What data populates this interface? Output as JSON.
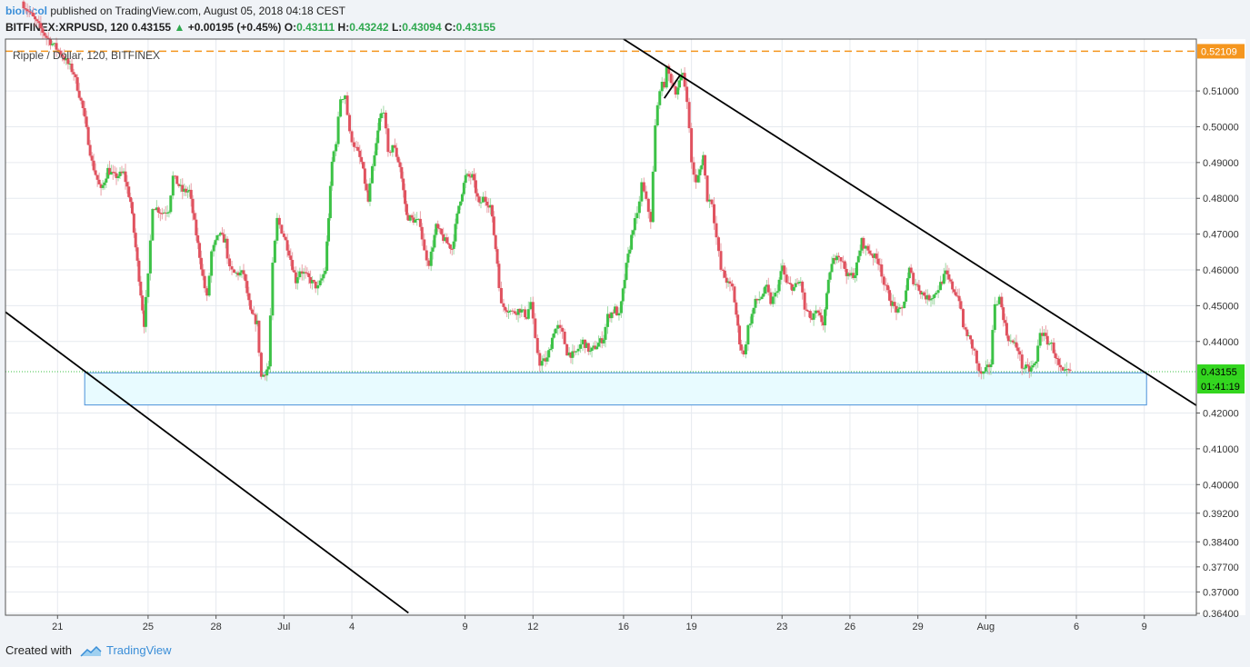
{
  "header": {
    "author": "bionicol",
    "published_text": "published on TradingView.com, August 05, 2018 04:18 CEST",
    "symbol": "BITFINEX:XRPUSD, 120",
    "last": "0.43155",
    "change_arrow": "▲",
    "change": "+0.00195 (+0.45%)",
    "open_label": "O:",
    "open": "0.43111",
    "high_label": "H:",
    "high": "0.43242",
    "low_label": "L:",
    "low": "0.43094",
    "close_label": "C:",
    "close": "0.43155"
  },
  "footer": {
    "created_with": "Created with",
    "brand": "TradingView",
    "logo_icon": "tradingview-cloud-icon"
  },
  "colors": {
    "up": "#3cc246",
    "down": "#e0525f",
    "grid": "#e6eaef",
    "trendline": "#000000",
    "resistance": "#f5961e",
    "box_fill": "#e8fbff",
    "box_stroke": "#4a90d9",
    "price_label": "#33d61f",
    "current_line": "#3cc246"
  },
  "chart_data": {
    "type": "candlestick",
    "title": "Ripple / Dollar, 120, BITFINEX",
    "ylim": [
      0.3635,
      0.5245
    ],
    "y_ticks": [
      0.51,
      0.5,
      0.49,
      0.48,
      0.47,
      0.46,
      0.45,
      0.44,
      0.42,
      0.41,
      0.4,
      0.392,
      0.384,
      0.377,
      0.37,
      0.364
    ],
    "y_tick_labels": [
      "0.51000",
      "0.50000",
      "0.49000",
      "0.48000",
      "0.47000",
      "0.46000",
      "0.45000",
      "0.44000",
      "0.42000",
      "0.41000",
      "0.40000",
      "0.39200",
      "0.38400",
      "0.37700",
      "0.37000",
      "0.36400"
    ],
    "x_ticks": [
      "21",
      "25",
      "28",
      "Jul",
      "4",
      "9",
      "12",
      "16",
      "19",
      "23",
      "26",
      "29",
      "Aug",
      "6",
      "9"
    ],
    "x_tick_days": [
      0,
      4,
      7,
      10,
      13,
      18,
      21,
      25,
      28,
      32,
      35,
      38,
      41,
      45,
      48
    ],
    "x_range_days": [
      -2.3,
      50.3
    ],
    "price_path": [
      [
        -1.5,
        0.535
      ],
      [
        -0.4,
        0.525
      ],
      [
        0.3,
        0.52
      ],
      [
        0.8,
        0.515
      ],
      [
        1.2,
        0.505
      ],
      [
        1.6,
        0.49
      ],
      [
        2.0,
        0.482
      ],
      [
        2.3,
        0.488
      ],
      [
        2.6,
        0.486
      ],
      [
        3.0,
        0.487
      ],
      [
        3.3,
        0.479
      ],
      [
        3.6,
        0.462
      ],
      [
        3.9,
        0.445
      ],
      [
        4.1,
        0.458
      ],
      [
        4.3,
        0.478
      ],
      [
        4.7,
        0.476
      ],
      [
        5.0,
        0.477
      ],
      [
        5.2,
        0.486
      ],
      [
        5.6,
        0.482
      ],
      [
        5.9,
        0.482
      ],
      [
        6.2,
        0.47
      ],
      [
        6.5,
        0.458
      ],
      [
        6.7,
        0.452
      ],
      [
        6.9,
        0.465
      ],
      [
        7.2,
        0.47
      ],
      [
        7.5,
        0.468
      ],
      [
        7.7,
        0.46
      ],
      [
        7.9,
        0.459
      ],
      [
        8.3,
        0.459
      ],
      [
        8.6,
        0.448
      ],
      [
        8.9,
        0.445
      ],
      [
        9.1,
        0.43
      ],
      [
        9.4,
        0.433
      ],
      [
        9.6,
        0.461
      ],
      [
        9.8,
        0.474
      ],
      [
        10.0,
        0.471
      ],
      [
        10.3,
        0.465
      ],
      [
        10.6,
        0.457
      ],
      [
        10.8,
        0.46
      ],
      [
        11.1,
        0.458
      ],
      [
        11.4,
        0.456
      ],
      [
        11.6,
        0.455
      ],
      [
        11.9,
        0.46
      ],
      [
        12.2,
        0.49
      ],
      [
        12.4,
        0.496
      ],
      [
        12.6,
        0.508
      ],
      [
        12.8,
        0.509
      ],
      [
        13.0,
        0.498
      ],
      [
        13.2,
        0.495
      ],
      [
        13.5,
        0.49
      ],
      [
        13.8,
        0.479
      ],
      [
        14.0,
        0.488
      ],
      [
        14.3,
        0.502
      ],
      [
        14.5,
        0.505
      ],
      [
        14.7,
        0.492
      ],
      [
        14.9,
        0.495
      ],
      [
        15.2,
        0.489
      ],
      [
        15.5,
        0.475
      ],
      [
        15.8,
        0.474
      ],
      [
        16.1,
        0.473
      ],
      [
        16.3,
        0.465
      ],
      [
        16.5,
        0.462
      ],
      [
        16.8,
        0.472
      ],
      [
        17.2,
        0.468
      ],
      [
        17.5,
        0.466
      ],
      [
        17.8,
        0.478
      ],
      [
        18.1,
        0.486
      ],
      [
        18.4,
        0.486
      ],
      [
        18.7,
        0.478
      ],
      [
        18.9,
        0.48
      ],
      [
        19.2,
        0.478
      ],
      [
        19.5,
        0.462
      ],
      [
        19.7,
        0.45
      ],
      [
        20.0,
        0.449
      ],
      [
        20.2,
        0.448
      ],
      [
        20.5,
        0.449
      ],
      [
        20.8,
        0.447
      ],
      [
        21.0,
        0.451
      ],
      [
        21.2,
        0.44
      ],
      [
        21.4,
        0.434
      ],
      [
        21.7,
        0.435
      ],
      [
        22.0,
        0.443
      ],
      [
        22.2,
        0.444
      ],
      [
        22.4,
        0.442
      ],
      [
        22.6,
        0.437
      ],
      [
        22.9,
        0.436
      ],
      [
        23.1,
        0.438
      ],
      [
        23.3,
        0.44
      ],
      [
        23.6,
        0.437
      ],
      [
        23.9,
        0.439
      ],
      [
        24.2,
        0.441
      ],
      [
        24.4,
        0.447
      ],
      [
        24.7,
        0.449
      ],
      [
        24.9,
        0.447
      ],
      [
        25.2,
        0.461
      ],
      [
        25.5,
        0.472
      ],
      [
        25.7,
        0.475
      ],
      [
        25.9,
        0.484
      ],
      [
        26.1,
        0.479
      ],
      [
        26.3,
        0.474
      ],
      [
        26.5,
        0.5
      ],
      [
        26.7,
        0.511
      ],
      [
        26.9,
        0.512
      ],
      [
        27.0,
        0.516
      ],
      [
        27.2,
        0.513
      ],
      [
        27.4,
        0.51
      ],
      [
        27.7,
        0.515
      ],
      [
        27.9,
        0.508
      ],
      [
        28.1,
        0.49
      ],
      [
        28.3,
        0.484
      ],
      [
        28.6,
        0.492
      ],
      [
        28.8,
        0.48
      ],
      [
        29.0,
        0.479
      ],
      [
        29.2,
        0.469
      ],
      [
        29.4,
        0.46
      ],
      [
        29.7,
        0.456
      ],
      [
        29.9,
        0.455
      ],
      [
        30.2,
        0.44
      ],
      [
        30.4,
        0.436
      ],
      [
        30.6,
        0.444
      ],
      [
        30.9,
        0.451
      ],
      [
        31.1,
        0.452
      ],
      [
        31.4,
        0.455
      ],
      [
        31.6,
        0.451
      ],
      [
        31.8,
        0.453
      ],
      [
        32.1,
        0.461
      ],
      [
        32.3,
        0.456
      ],
      [
        32.6,
        0.455
      ],
      [
        32.9,
        0.457
      ],
      [
        33.1,
        0.449
      ],
      [
        33.4,
        0.446
      ],
      [
        33.6,
        0.448
      ],
      [
        33.9,
        0.445
      ],
      [
        34.2,
        0.46
      ],
      [
        34.5,
        0.465
      ],
      [
        34.7,
        0.463
      ],
      [
        35.0,
        0.458
      ],
      [
        35.3,
        0.459
      ],
      [
        35.6,
        0.468
      ],
      [
        35.8,
        0.466
      ],
      [
        36.1,
        0.464
      ],
      [
        36.4,
        0.462
      ],
      [
        36.6,
        0.456
      ],
      [
        36.9,
        0.451
      ],
      [
        37.2,
        0.448
      ],
      [
        37.4,
        0.449
      ],
      [
        37.7,
        0.46
      ],
      [
        37.9,
        0.457
      ],
      [
        38.2,
        0.454
      ],
      [
        38.5,
        0.452
      ],
      [
        38.8,
        0.453
      ],
      [
        39.0,
        0.455
      ],
      [
        39.3,
        0.459
      ],
      [
        39.6,
        0.455
      ],
      [
        39.9,
        0.452
      ],
      [
        40.1,
        0.444
      ],
      [
        40.4,
        0.44
      ],
      [
        40.6,
        0.437
      ],
      [
        40.8,
        0.431
      ],
      [
        41.0,
        0.431
      ],
      [
        41.3,
        0.434
      ],
      [
        41.5,
        0.451
      ],
      [
        41.7,
        0.452
      ],
      [
        42.0,
        0.442
      ],
      [
        42.2,
        0.44
      ],
      [
        42.5,
        0.438
      ],
      [
        42.7,
        0.433
      ],
      [
        43.0,
        0.432
      ],
      [
        43.3,
        0.434
      ],
      [
        43.5,
        0.443
      ],
      [
        43.8,
        0.44
      ],
      [
        44.0,
        0.439
      ],
      [
        44.3,
        0.433
      ],
      [
        44.5,
        0.431
      ],
      [
        44.8,
        0.43155
      ]
    ],
    "overlays": {
      "resistance_level": 0.52109,
      "current_price": 0.43155,
      "support_zone": {
        "x_days": [
          1.2,
          48.1
        ],
        "price": [
          0.42225,
          0.43125
        ]
      },
      "trendlines": [
        {
          "from": [
            -2.3,
            0.44822
          ],
          "to": [
            15.5,
            0.36415
          ]
        },
        {
          "from": [
            25.0,
            0.5245
          ],
          "to": [
            50.3,
            0.42214
          ]
        },
        {
          "from": [
            26.8,
            0.50795
          ],
          "to": [
            27.5,
            0.51445
          ]
        }
      ]
    },
    "price_labels": {
      "resistance": "0.52109",
      "current": "0.43155",
      "countdown": "01:41:19"
    }
  }
}
